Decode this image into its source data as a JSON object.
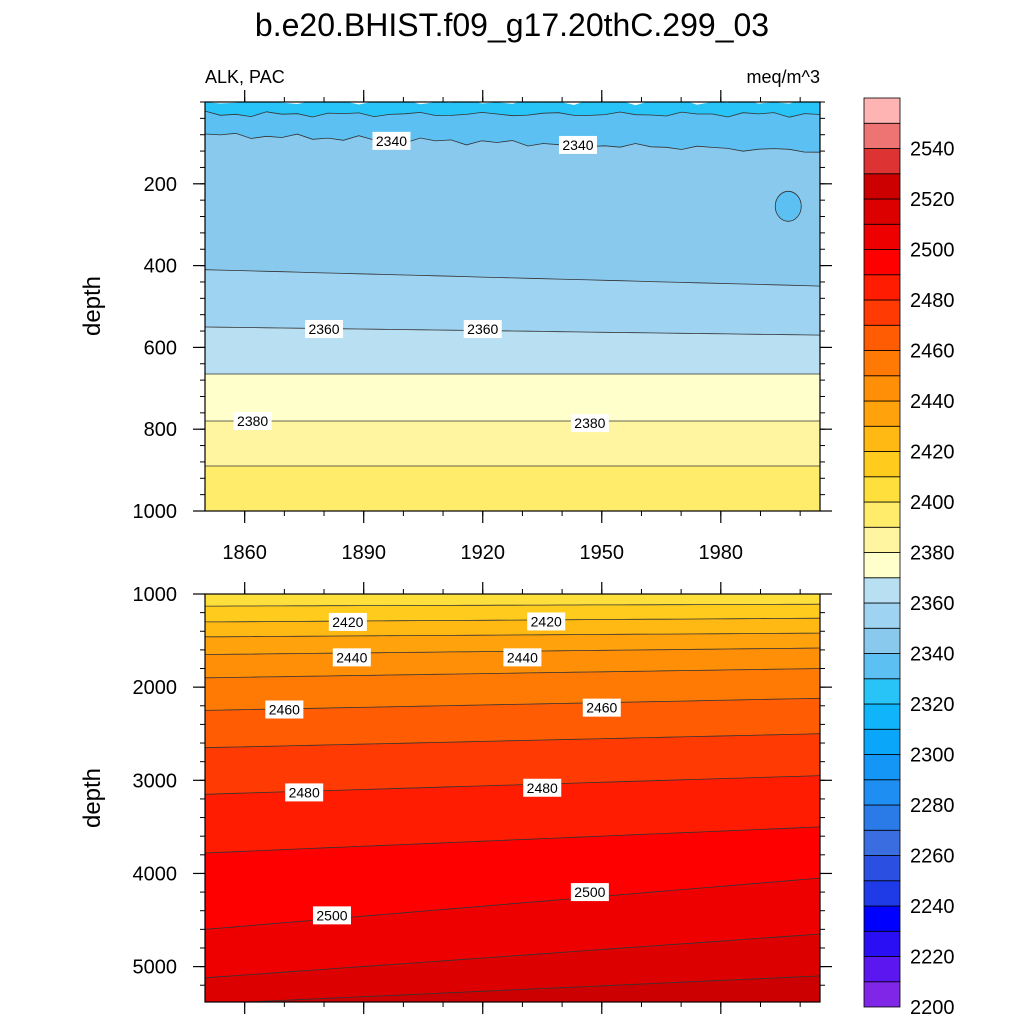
{
  "title": "b.e20.BHIST.f09_g17.20thC.299_03",
  "colors": {
    "levels": [
      2200,
      2210,
      2220,
      2230,
      2240,
      2250,
      2260,
      2270,
      2280,
      2290,
      2300,
      2310,
      2320,
      2330,
      2340,
      2350,
      2360,
      2370,
      2380,
      2390,
      2400,
      2410,
      2420,
      2430,
      2440,
      2450,
      2460,
      2470,
      2480,
      2490,
      2500,
      2510,
      2520,
      2530,
      2540,
      2550
    ],
    "fills": [
      "#8026e6",
      "#5c16f0",
      "#2a0ff5",
      "#0000ff",
      "#1f3be8",
      "#2b4fe0",
      "#3a6ee0",
      "#2a7be8",
      "#1e8ef2",
      "#1496f7",
      "#0aa6fa",
      "#10b4fa",
      "#28c4f7",
      "#5cc0f2",
      "#89c9ee",
      "#9fd3f2",
      "#b9e0f2",
      "#ffffcc",
      "#fff5a0",
      "#ffec6b",
      "#ffdf3c",
      "#ffcc1e",
      "#ffb912",
      "#ffa20b",
      "#ff8f07",
      "#ff7a05",
      "#ff5c04",
      "#ff3a02",
      "#ff1c00",
      "#ff0000",
      "#ee0000",
      "#dd0000",
      "#cc0000",
      "#dd3333",
      "#ee7373",
      "#ffb4b4"
    ]
  },
  "chart_data": [
    {
      "type": "heatmap",
      "subtitle_left": "ALK, PAC",
      "subtitle_right": "meq/m^3",
      "ylabel": "depth",
      "xlim": [
        1850,
        2005
      ],
      "ylim": [
        1000,
        0
      ],
      "x_ticks": [
        1860,
        1890,
        1920,
        1950,
        1980
      ],
      "y_ticks": [
        200,
        400,
        600,
        800,
        1000
      ],
      "bands": [
        {
          "value_from": 2320,
          "value_to": 2330,
          "fill": "#28c4f7",
          "top_start": 0,
          "top_end": 0
        },
        {
          "value_from": 2330,
          "value_to": 2340,
          "fill": "#5cc0f2",
          "top_start": 30,
          "top_end": 30
        },
        {
          "value_from": 2340,
          "value_to": 2350,
          "fill": "#89c9ee",
          "top_start": 80,
          "top_end": 120
        },
        {
          "value_from": 2350,
          "value_to": 2360,
          "fill": "#9fd3f2",
          "top_start": 410,
          "top_end": 450
        },
        {
          "value_from": 2360,
          "value_to": 2370,
          "fill": "#b9e0f2",
          "top_start": 550,
          "top_end": 570
        },
        {
          "value_from": 2370,
          "value_to": 2380,
          "fill": "#ffffcc",
          "top_start": 665,
          "top_end": 665
        },
        {
          "value_from": 2380,
          "value_to": 2390,
          "fill": "#fff5a0",
          "top_start": 780,
          "top_end": 780
        },
        {
          "value_from": 2390,
          "value_to": 2400,
          "fill": "#ffec6b",
          "top_start": 890,
          "top_end": 890
        }
      ],
      "contour_labels": [
        {
          "text": "2340",
          "x": 1897,
          "depth": 95
        },
        {
          "text": "2340",
          "x": 1944,
          "depth": 105
        },
        {
          "text": "2360",
          "x": 1880,
          "depth": 555
        },
        {
          "text": "2360",
          "x": 1920,
          "depth": 555
        },
        {
          "text": "2380",
          "x": 1862,
          "depth": 780
        },
        {
          "text": "2380",
          "x": 1947,
          "depth": 785
        }
      ]
    },
    {
      "type": "heatmap",
      "ylabel": "depth",
      "xlim": [
        1850,
        2005
      ],
      "ylim": [
        5380,
        1000
      ],
      "x_ticks": [
        1860,
        1890,
        1920,
        1950,
        1980
      ],
      "y_ticks": [
        1000,
        2000,
        3000,
        4000,
        5000
      ],
      "bands": [
        {
          "value_from": 2400,
          "value_to": 2410,
          "fill": "#ffdf3c",
          "top_start": 1000,
          "top_end": 1000
        },
        {
          "value_from": 2410,
          "value_to": 2420,
          "fill": "#ffcc1e",
          "top_start": 1130,
          "top_end": 1110
        },
        {
          "value_from": 2420,
          "value_to": 2430,
          "fill": "#ffb912",
          "top_start": 1300,
          "top_end": 1260
        },
        {
          "value_from": 2430,
          "value_to": 2440,
          "fill": "#ffa20b",
          "top_start": 1460,
          "top_end": 1420
        },
        {
          "value_from": 2440,
          "value_to": 2450,
          "fill": "#ff8f07",
          "top_start": 1650,
          "top_end": 1580
        },
        {
          "value_from": 2450,
          "value_to": 2460,
          "fill": "#ff7a05",
          "top_start": 1900,
          "top_end": 1800
        },
        {
          "value_from": 2460,
          "value_to": 2470,
          "fill": "#ff5c04",
          "top_start": 2250,
          "top_end": 2120
        },
        {
          "value_from": 2470,
          "value_to": 2480,
          "fill": "#ff3a02",
          "top_start": 2650,
          "top_end": 2500
        },
        {
          "value_from": 2480,
          "value_to": 2490,
          "fill": "#ff1c00",
          "top_start": 3150,
          "top_end": 2950
        },
        {
          "value_from": 2490,
          "value_to": 2500,
          "fill": "#ff0000",
          "top_start": 3780,
          "top_end": 3500
        },
        {
          "value_from": 2500,
          "value_to": 2510,
          "fill": "#ee0000",
          "top_start": 4600,
          "top_end": 4050
        },
        {
          "value_from": 2510,
          "value_to": 2520,
          "fill": "#dd0000",
          "top_start": 5120,
          "top_end": 4650
        },
        {
          "value_from": 2520,
          "value_to": 2530,
          "fill": "#cc0000",
          "top_start": 5400,
          "top_end": 5100
        }
      ],
      "contour_labels": [
        {
          "text": "2420",
          "x": 1886,
          "depth": 1300
        },
        {
          "text": "2420",
          "x": 1936,
          "depth": 1295
        },
        {
          "text": "2440",
          "x": 1887,
          "depth": 1680
        },
        {
          "text": "2440",
          "x": 1930,
          "depth": 1680
        },
        {
          "text": "2460",
          "x": 1870,
          "depth": 2240
        },
        {
          "text": "2460",
          "x": 1950,
          "depth": 2220
        },
        {
          "text": "2480",
          "x": 1875,
          "depth": 3130
        },
        {
          "text": "2480",
          "x": 1935,
          "depth": 3080
        },
        {
          "text": "2500",
          "x": 1882,
          "depth": 4450
        },
        {
          "text": "2500",
          "x": 1947,
          "depth": 4200
        }
      ]
    }
  ],
  "colorbar": {
    "tick_labels": [
      "2200",
      "2220",
      "2240",
      "2260",
      "2280",
      "2300",
      "2320",
      "2340",
      "2360",
      "2380",
      "2400",
      "2420",
      "2440",
      "2460",
      "2480",
      "2500",
      "2520",
      "2540"
    ]
  }
}
